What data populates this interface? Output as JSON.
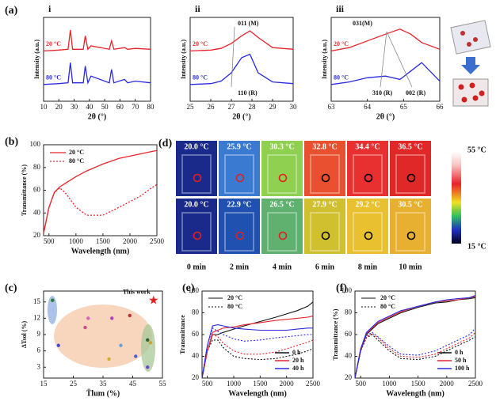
{
  "chart_data": [
    {
      "type": "line",
      "label": "(a)",
      "title": "i",
      "xlabel": "2θ (°)",
      "ylabel": "Intensity (a.u.)",
      "x": [
        10,
        20,
        26,
        27.5,
        29,
        36,
        37.3,
        39,
        41,
        53,
        54.5,
        56,
        63,
        65,
        70,
        80
      ],
      "xlim": [
        10,
        80
      ],
      "xticks": [
        10,
        20,
        30,
        40,
        50,
        60,
        70,
        80
      ],
      "ylim": [
        0,
        10
      ],
      "series": [
        {
          "name": "20 °C",
          "color": "#e8242a",
          "values": [
            6,
            6.1,
            6.2,
            8.5,
            6.2,
            6.2,
            7.8,
            6.2,
            6.6,
            6.2,
            7.2,
            6.2,
            6.4,
            6.2,
            6.3,
            6.2
          ]
        },
        {
          "name": "80 °C",
          "color": "#2a2ae0",
          "values": [
            2,
            2.1,
            2.2,
            4.6,
            2.2,
            2.2,
            4.2,
            2.2,
            3,
            2.2,
            3.8,
            2.2,
            2.6,
            2.2,
            2.4,
            2.2
          ]
        }
      ]
    },
    {
      "type": "line",
      "title": "ii",
      "xlabel": "2θ (°)",
      "ylabel": "Intensity (a.u.)",
      "x": [
        25,
        26,
        26.5,
        27,
        27.5,
        27.9,
        28.3,
        29,
        30
      ],
      "xlim": [
        25,
        30
      ],
      "xticks": [
        25,
        26,
        27,
        28,
        29,
        30
      ],
      "ylim": [
        0,
        10
      ],
      "annotations": [
        "011 (M)",
        "110 (R)"
      ],
      "series": [
        {
          "name": "20 °C",
          "color": "#e8242a",
          "values": [
            6,
            6.1,
            6.3,
            6.9,
            7.8,
            8.4,
            7.6,
            6.4,
            6.2
          ]
        },
        {
          "name": "80 °C",
          "color": "#2a2ae0",
          "values": [
            2,
            2.1,
            2.4,
            3.4,
            5.2,
            5.6,
            3.4,
            2.3,
            2.1
          ]
        }
      ]
    },
    {
      "type": "line",
      "title": "iii",
      "xlabel": "2θ (°)",
      "ylabel": "Intensity (a.u.)",
      "x": [
        63,
        63.5,
        64,
        64.5,
        64.9,
        65.2,
        65.5,
        66
      ],
      "xlim": [
        63,
        66
      ],
      "xticks": [
        63,
        64,
        65,
        66
      ],
      "ylim": [
        0,
        10
      ],
      "annotations": [
        "031(M)",
        "310 (R)",
        "002 (R)"
      ],
      "series": [
        {
          "name": "20 °C",
          "color": "#e8242a",
          "values": [
            6,
            6.4,
            7.2,
            8,
            8.6,
            8,
            7,
            6.2
          ]
        },
        {
          "name": "80 °C",
          "color": "#2a2ae0",
          "values": [
            2,
            2.3,
            2.8,
            3,
            2.6,
            3.6,
            4.6,
            2.4
          ]
        }
      ]
    },
    {
      "type": "line",
      "label": "(b)",
      "xlabel": "Wavelength (nm)",
      "ylabel": "Transmittance (%)",
      "x": [
        400,
        500,
        600,
        700,
        800,
        1000,
        1200,
        1500,
        1800,
        2000,
        2200,
        2400,
        2500
      ],
      "xlim": [
        400,
        2500
      ],
      "xticks": [
        500,
        1000,
        1500,
        2000,
        2500
      ],
      "ylim": [
        20,
        100
      ],
      "yticks": [
        20,
        40,
        60,
        80,
        100
      ],
      "series": [
        {
          "name": "20 °C",
          "color": "#e8242a",
          "style": "solid",
          "values": [
            22,
            45,
            58,
            63,
            66,
            72,
            77,
            83,
            88,
            90,
            92,
            94,
            95
          ]
        },
        {
          "name": "80 °C",
          "color": "#e8242a",
          "style": "dotted",
          "values": [
            22,
            45,
            58,
            62,
            58,
            45,
            38,
            38,
            45,
            50,
            55,
            62,
            65
          ]
        }
      ]
    },
    {
      "type": "scatter",
      "label": "(c)",
      "xlabel": "T̄lum (%)",
      "ylabel": "ΔTsol (%)",
      "x": [
        18,
        20,
        29,
        30,
        38,
        41,
        37,
        44,
        46,
        50,
        51,
        50
      ],
      "values": [
        15.3,
        7,
        10.3,
        12,
        12,
        7,
        4.5,
        12.5,
        5,
        8,
        7.5,
        3
      ],
      "colors": [
        "#2a7a3a",
        "#4a4ad0",
        "#d04a8a",
        "#e060c0",
        "#b040c0",
        "#6aa0d0",
        "#d0b030",
        "#c03030",
        "#4a60d0",
        "#306030",
        "#d0a030",
        "#6a4ac0"
      ],
      "highlight": {
        "x": 52,
        "y": 15.3,
        "label": "This work",
        "color": "#e82020"
      },
      "xlim": [
        15,
        55
      ],
      "xticks": [
        15,
        25,
        35,
        45,
        55
      ],
      "ylim": [
        1,
        17
      ],
      "yticks": [
        3,
        6,
        9,
        12,
        15
      ]
    },
    {
      "type": "aging",
      "label": "(e)",
      "xlabel": "Wavelength (nm)",
      "ylabel": "Transmittance",
      "x": [
        400,
        500,
        600,
        700,
        800,
        1000,
        1200,
        1500,
        1800,
        2000,
        2200,
        2400,
        2500
      ],
      "xlim": [
        400,
        2500
      ],
      "xticks": [
        500,
        1000,
        1500,
        2000,
        2500
      ],
      "ylim": [
        20,
        100
      ],
      "yticks": [
        20,
        40,
        60,
        80,
        100
      ],
      "line_styles": [
        "20 °C",
        "80 °C"
      ],
      "series": [
        {
          "name": "0 h",
          "color": "#111111",
          "values": [
            20,
            45,
            60,
            60,
            62,
            65,
            68,
            72,
            76,
            79,
            82,
            86,
            90
          ],
          "dotted_values": [
            20,
            45,
            55,
            55,
            48,
            40,
            38,
            37,
            38,
            40,
            42,
            45,
            47
          ]
        },
        {
          "name": "20 h",
          "color": "#e8242a",
          "values": [
            20,
            45,
            62,
            64,
            66,
            67,
            69,
            71,
            73,
            74,
            75,
            76,
            77
          ],
          "dotted_values": [
            20,
            45,
            60,
            58,
            52,
            45,
            42,
            42,
            44,
            47,
            50,
            53,
            55
          ]
        },
        {
          "name": "40 h",
          "color": "#2a2ae0",
          "values": [
            20,
            50,
            68,
            69,
            68,
            66,
            65,
            64,
            64,
            64,
            65,
            66,
            66
          ],
          "dotted_values": [
            20,
            50,
            66,
            63,
            60,
            56,
            54,
            55,
            57,
            58,
            59,
            60,
            60
          ]
        }
      ]
    },
    {
      "type": "aging",
      "label": "(f)",
      "xlabel": "Wavelength (nm)",
      "ylabel": "Transmittance (%)",
      "x": [
        400,
        500,
        600,
        700,
        800,
        1000,
        1200,
        1500,
        1800,
        2000,
        2200,
        2400,
        2500
      ],
      "xlim": [
        400,
        2500
      ],
      "xticks": [
        500,
        1000,
        1500,
        2000,
        2500
      ],
      "ylim": [
        20,
        100
      ],
      "yticks": [
        20,
        40,
        60,
        80,
        100
      ],
      "line_styles": [
        "20 °C",
        "80 °C"
      ],
      "series": [
        {
          "name": "0 h",
          "color": "#111111",
          "values": [
            20,
            45,
            60,
            65,
            70,
            75,
            80,
            85,
            89,
            90,
            92,
            93,
            94
          ],
          "dotted_values": [
            20,
            45,
            57,
            60,
            55,
            45,
            38,
            37,
            40,
            45,
            50,
            55,
            58
          ]
        },
        {
          "name": "50 h",
          "color": "#e8242a",
          "values": [
            20,
            46,
            61,
            66,
            71,
            76,
            81,
            86,
            90,
            91,
            92,
            94,
            95
          ],
          "dotted_values": [
            20,
            46,
            58,
            61,
            57,
            47,
            40,
            39,
            42,
            47,
            52,
            57,
            62
          ]
        },
        {
          "name": "100 h",
          "color": "#2a2ae0",
          "values": [
            20,
            47,
            62,
            67,
            72,
            77,
            82,
            86,
            90,
            92,
            93,
            94,
            96
          ],
          "dotted_values": [
            20,
            47,
            59,
            62,
            58,
            49,
            42,
            41,
            45,
            50,
            55,
            60,
            66
          ]
        }
      ]
    }
  ],
  "thermal_images": {
    "label": "(d)",
    "rows": [
      [
        "20.0 °C",
        "25.9 °C",
        "30.3 °C",
        "32.8 °C",
        "34.4 °C",
        "36.5 °C"
      ],
      [
        "20.0 °C",
        "22.9 °C",
        "26.5 °C",
        "27.9 °C",
        "29.2 °C",
        "30.5 °C"
      ]
    ],
    "times": [
      "0 min",
      "2 min",
      "4 min",
      "6 min",
      "8 min",
      "10 min"
    ],
    "scale_max": "55 °C",
    "scale_min": "15 °C"
  }
}
